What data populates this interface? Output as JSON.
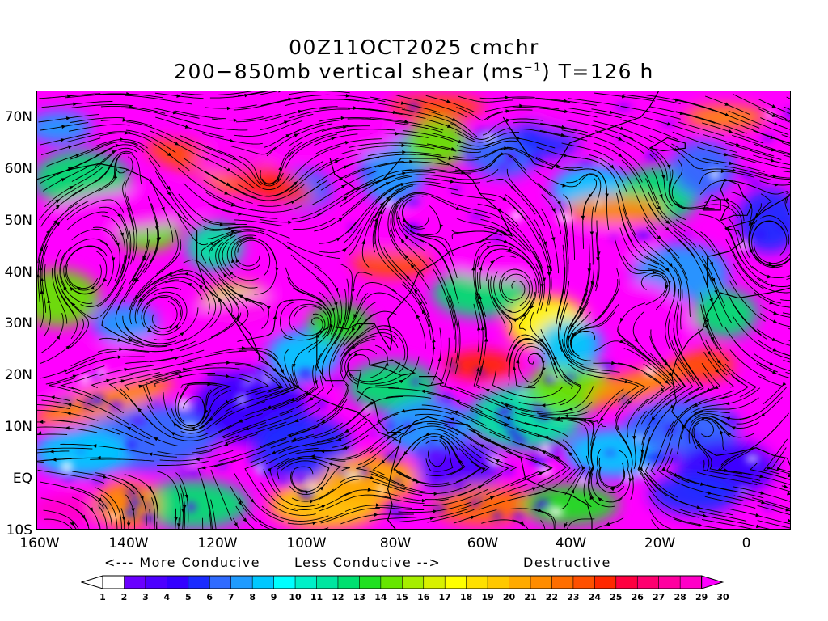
{
  "title": {
    "line1": "00Z11OCT2025 cmchr",
    "line2_prefix": "200−850mb vertical shear (ms",
    "line2_sup": "−1",
    "line2_suffix": ") T=126 h"
  },
  "map": {
    "lon_range": [
      -160,
      10
    ],
    "lat_range": [
      -10,
      75
    ],
    "y_axis_labels": [
      "70N",
      "60N",
      "50N",
      "40N",
      "30N",
      "20N",
      "10N",
      "EQ",
      "10S"
    ],
    "y_axis_values": [
      70,
      60,
      50,
      40,
      30,
      20,
      10,
      0,
      -10
    ],
    "x_axis_labels": [
      "160W",
      "140W",
      "120W",
      "100W",
      "80W",
      "60W",
      "40W",
      "20W",
      "0"
    ],
    "x_axis_values": [
      -160,
      -140,
      -120,
      -100,
      -80,
      -60,
      -40,
      -20,
      0
    ],
    "field": "200-850mb vertical wind shear magnitude with streamlines",
    "units": "ms-1"
  },
  "guide": {
    "more": "<--- More Conducive",
    "less": "Less Conducive -->",
    "destructive": "Destructive"
  },
  "colorbar": {
    "labels": [
      "1",
      "2",
      "3",
      "4",
      "5",
      "6",
      "7",
      "8",
      "9",
      "10",
      "11",
      "12",
      "13",
      "14",
      "15",
      "16",
      "17",
      "18",
      "19",
      "20",
      "21",
      "22",
      "23",
      "24",
      "25",
      "26",
      "27",
      "28",
      "29",
      "30"
    ],
    "colors": [
      "#ffffff",
      "#6a00ff",
      "#4d00ff",
      "#3300ff",
      "#1a2bff",
      "#2f6bff",
      "#1f9bff",
      "#00c8ff",
      "#00ffff",
      "#00f0c8",
      "#00e6a0",
      "#00e070",
      "#20e020",
      "#66e600",
      "#a6ee00",
      "#d8f000",
      "#ffff00",
      "#ffe000",
      "#ffc800",
      "#ffaa00",
      "#ff8c00",
      "#ff6e00",
      "#ff5000",
      "#ff2800",
      "#ff0040",
      "#ff0070",
      "#ff00a0",
      "#ff00c8",
      "#ff00ff"
    ]
  }
}
